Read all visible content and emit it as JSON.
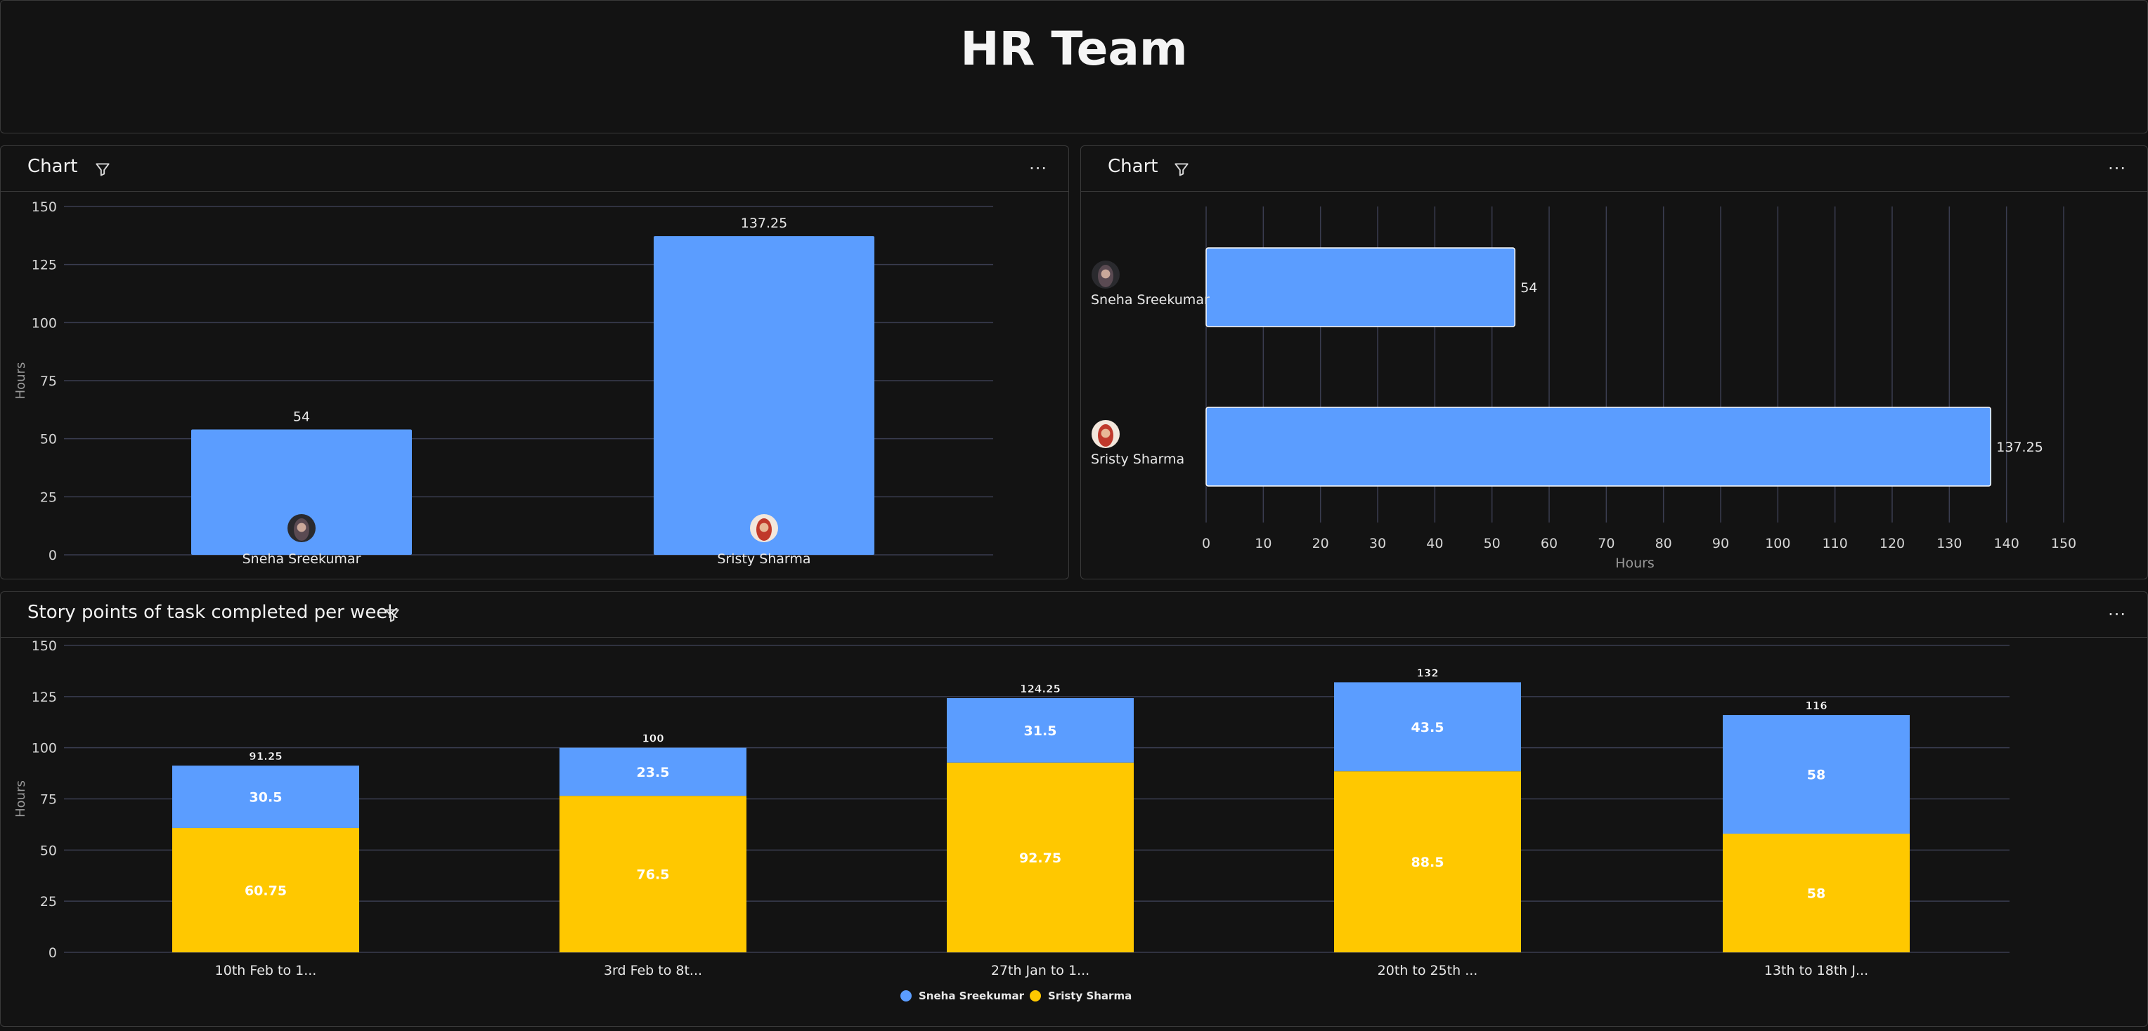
{
  "page": {
    "title": "HR Team"
  },
  "panels": {
    "chart1": {
      "title": "Chart",
      "menu": "···"
    },
    "chart2": {
      "title": "Chart",
      "menu": "···"
    },
    "chart3": {
      "title": "Story points of task completed per week",
      "menu": "···"
    }
  },
  "colors": {
    "blue": "#5b9dff",
    "yellow": "#ffc800",
    "grid": "#3a3d50",
    "axis_text": "#d6d6d6"
  },
  "chart_data": [
    {
      "type": "bar",
      "categories": [
        "Sneha Sreekumar",
        "Sristy Sharma"
      ],
      "values": [
        54,
        137.25
      ],
      "value_labels": [
        "54",
        "137.25"
      ],
      "ylabel": "Hours",
      "ylim": [
        0,
        150
      ],
      "yticks": [
        0,
        25,
        50,
        75,
        100,
        125,
        150
      ],
      "grid": true,
      "category_icons": [
        "avatar",
        "avatar"
      ]
    },
    {
      "type": "bar",
      "orientation": "horizontal",
      "categories": [
        "Sneha Sreekumar",
        "Sristy Sharma"
      ],
      "values": [
        54,
        137.25
      ],
      "value_labels": [
        "54",
        "137.25"
      ],
      "xlabel": "Hours",
      "xlim": [
        0,
        150
      ],
      "xticks": [
        0,
        10,
        20,
        30,
        40,
        50,
        60,
        70,
        80,
        90,
        100,
        110,
        120,
        130,
        140,
        150
      ],
      "grid": true,
      "category_icons": [
        "avatar",
        "avatar"
      ]
    },
    {
      "type": "bar",
      "stacked": true,
      "categories": [
        "10th Feb to 1...",
        "3rd Feb to 8t...",
        "27th Jan to 1...",
        "20th to 25th ...",
        "13th to 18th J..."
      ],
      "series": [
        {
          "name": "Sristy Sharma",
          "values": [
            60.75,
            76.5,
            92.75,
            88.5,
            58
          ],
          "labels": [
            "60.75",
            "76.5",
            "92.75",
            "88.5",
            "58"
          ]
        },
        {
          "name": "Sneha Sreekumar",
          "values": [
            30.5,
            23.5,
            31.5,
            43.5,
            58
          ],
          "labels": [
            "30.5",
            "23.5",
            "31.5",
            "43.5",
            "58"
          ]
        }
      ],
      "totals": [
        "91.25",
        "100",
        "124.25",
        "132",
        "116"
      ],
      "legend": [
        "Sneha Sreekumar",
        "Sristy Sharma"
      ],
      "ylabel": "Hours",
      "ylim": [
        0,
        150
      ],
      "yticks": [
        0,
        25,
        50,
        75,
        100,
        125,
        150
      ],
      "grid": true,
      "legend_position": "bottom"
    }
  ]
}
